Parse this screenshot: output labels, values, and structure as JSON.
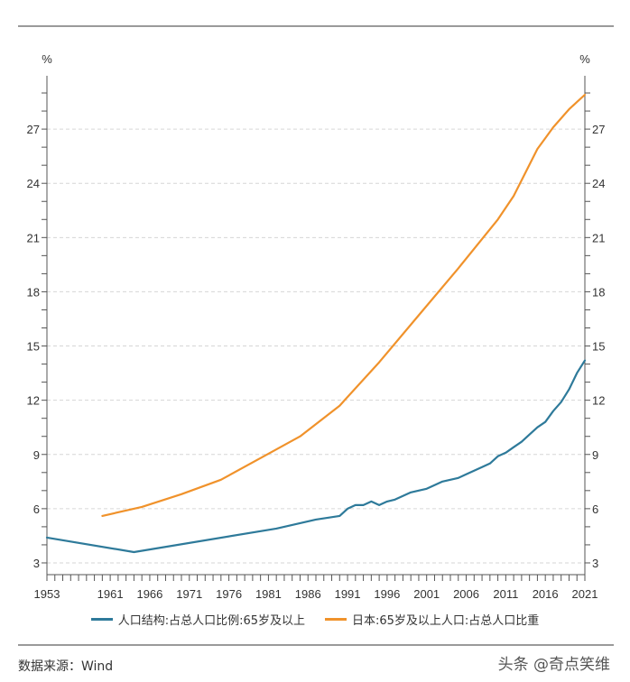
{
  "chart_data": {
    "type": "line",
    "title": "",
    "xlabel": "",
    "ylabel_left": "%",
    "ylabel_right": "%",
    "xlim": [
      1953,
      2021
    ],
    "ylim": [
      2.35,
      29.95
    ],
    "x_ticks": [
      1953,
      1961,
      1966,
      1971,
      1976,
      1981,
      1986,
      1991,
      1996,
      2001,
      2006,
      2011,
      2016,
      2021
    ],
    "y_ticks": [
      3,
      6,
      9,
      12,
      15,
      18,
      21,
      24,
      27
    ],
    "grid": "horizontal-dashed",
    "legend_position": "bottom",
    "colors": {
      "china": "#2e7a9a",
      "japan": "#f0922b"
    },
    "series": [
      {
        "name": "人口结构:占总人口比例:65岁及以上",
        "color": "#2e7a9a",
        "points": [
          [
            1953,
            4.4
          ],
          [
            1964,
            3.6
          ],
          [
            1982,
            4.9
          ],
          [
            1987,
            5.4
          ],
          [
            1990,
            5.6
          ],
          [
            1991,
            6.0
          ],
          [
            1992,
            6.2
          ],
          [
            1993,
            6.2
          ],
          [
            1994,
            6.4
          ],
          [
            1995,
            6.2
          ],
          [
            1996,
            6.4
          ],
          [
            1997,
            6.5
          ],
          [
            1998,
            6.7
          ],
          [
            1999,
            6.9
          ],
          [
            2000,
            7.0
          ],
          [
            2001,
            7.1
          ],
          [
            2002,
            7.3
          ],
          [
            2003,
            7.5
          ],
          [
            2004,
            7.6
          ],
          [
            2005,
            7.7
          ],
          [
            2006,
            7.9
          ],
          [
            2007,
            8.1
          ],
          [
            2008,
            8.3
          ],
          [
            2009,
            8.5
          ],
          [
            2010,
            8.9
          ],
          [
            2011,
            9.1
          ],
          [
            2012,
            9.4
          ],
          [
            2013,
            9.7
          ],
          [
            2014,
            10.1
          ],
          [
            2015,
            10.5
          ],
          [
            2016,
            10.8
          ],
          [
            2017,
            11.4
          ],
          [
            2018,
            11.9
          ],
          [
            2019,
            12.6
          ],
          [
            2020,
            13.5
          ],
          [
            2021,
            14.2
          ]
        ]
      },
      {
        "name": "日本:65岁及以上人口:占总人口比重",
        "color": "#f0922b",
        "points": [
          [
            1960,
            5.6
          ],
          [
            1965,
            6.1
          ],
          [
            1970,
            6.8
          ],
          [
            1975,
            7.6
          ],
          [
            1980,
            8.8
          ],
          [
            1985,
            10.0
          ],
          [
            1990,
            11.7
          ],
          [
            1995,
            14.1
          ],
          [
            2000,
            16.7
          ],
          [
            2005,
            19.3
          ],
          [
            2010,
            22.0
          ],
          [
            2012,
            23.3
          ],
          [
            2015,
            25.9
          ],
          [
            2016,
            26.5
          ],
          [
            2017,
            27.1
          ],
          [
            2018,
            27.6
          ],
          [
            2019,
            28.1
          ],
          [
            2020,
            28.5
          ],
          [
            2021,
            28.9
          ]
        ]
      }
    ]
  },
  "legend": {
    "items": [
      {
        "label": "人口结构:占总人口比例:65岁及以上",
        "color": "#2e7a9a"
      },
      {
        "label": "日本:65岁及以上人口:占总人口比重",
        "color": "#f0922b"
      }
    ]
  },
  "footer": {
    "source": "数据来源：Wind",
    "watermark": "头条 @奇点笑维"
  }
}
